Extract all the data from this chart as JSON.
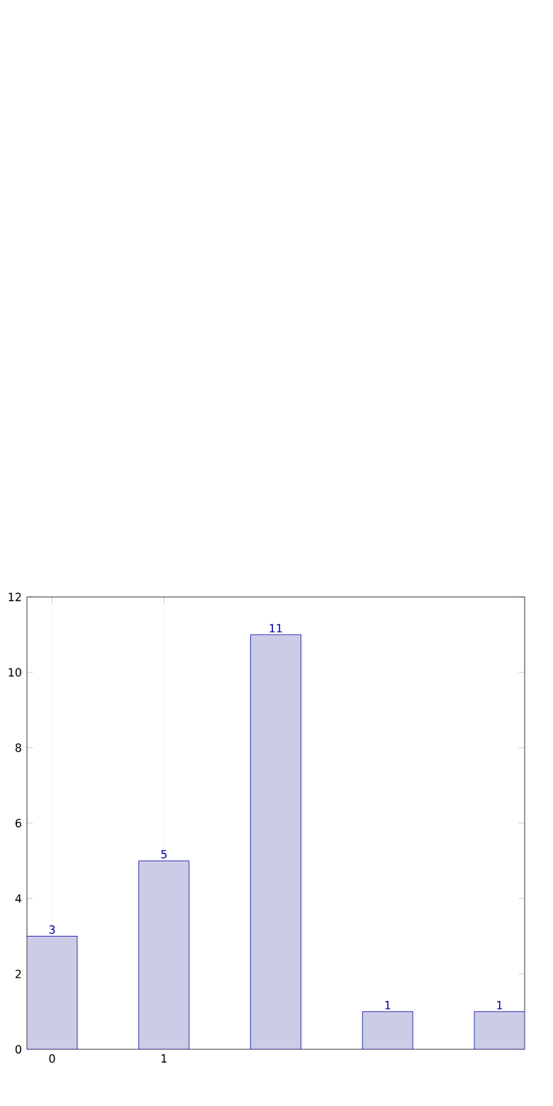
{
  "chart_data": {
    "type": "bar",
    "categories": [
      "0",
      "1",
      null,
      null,
      null
    ],
    "values": [
      3,
      5,
      11,
      1,
      1
    ],
    "color": "#cccce6",
    "ylim": [
      0,
      12
    ],
    "yticks": [
      0,
      2,
      4,
      6,
      8,
      10,
      12
    ],
    "grid": "x",
    "data_labels": true
  }
}
